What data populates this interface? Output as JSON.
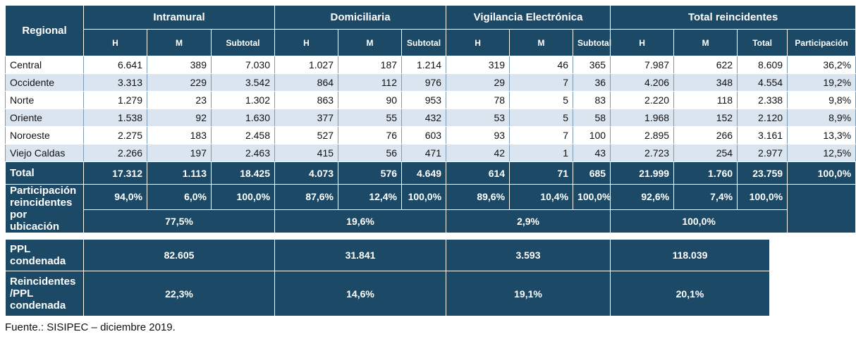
{
  "headers": {
    "regional": "Regional",
    "groups": [
      "Intramural",
      "Domiciliaria",
      "Vigilancia Electrónica",
      "Total reincidentes"
    ],
    "intramural_sub": [
      "H",
      "M",
      "Subtotal"
    ],
    "domiciliaria_sub": [
      "H",
      "M",
      "Subtotal"
    ],
    "vigilancia_sub": [
      "H",
      "M",
      "Subtotal"
    ],
    "total_sub": [
      "H",
      "M",
      "Total",
      "Participación"
    ]
  },
  "rows": [
    {
      "name": "Central",
      "values": [
        "6.641",
        "389",
        "7.030",
        "1.027",
        "187",
        "1.214",
        "319",
        "46",
        "365",
        "7.987",
        "622",
        "8.609",
        "36,2%"
      ]
    },
    {
      "name": "Occidente",
      "values": [
        "3.313",
        "229",
        "3.542",
        "864",
        "112",
        "976",
        "29",
        "7",
        "36",
        "4.206",
        "348",
        "4.554",
        "19,2%"
      ]
    },
    {
      "name": "Norte",
      "values": [
        "1.279",
        "23",
        "1.302",
        "863",
        "90",
        "953",
        "78",
        "5",
        "83",
        "2.220",
        "118",
        "2.338",
        "9,8%"
      ]
    },
    {
      "name": "Oriente",
      "values": [
        "1.538",
        "92",
        "1.630",
        "377",
        "55",
        "432",
        "53",
        "5",
        "58",
        "1.968",
        "152",
        "2.120",
        "8,9%"
      ]
    },
    {
      "name": "Noroeste",
      "values": [
        "2.275",
        "183",
        "2.458",
        "527",
        "76",
        "603",
        "93",
        "7",
        "100",
        "2.895",
        "266",
        "3.161",
        "13,3%"
      ]
    },
    {
      "name": "Viejo Caldas",
      "values": [
        "2.266",
        "197",
        "2.463",
        "415",
        "56",
        "471",
        "42",
        "1",
        "43",
        "2.723",
        "254",
        "2.977",
        "12,5%"
      ]
    }
  ],
  "total": {
    "name": "Total",
    "values": [
      "17.312",
      "1.113",
      "18.425",
      "4.073",
      "576",
      "4.649",
      "614",
      "71",
      "685",
      "21.999",
      "1.760",
      "23.759",
      "100,0%"
    ]
  },
  "participacion": {
    "name": "Participación reincidentes por ubicación",
    "values": [
      "94,0%",
      "6,0%",
      "100,0%",
      "87,6%",
      "12,4%",
      "100,0%",
      "89,6%",
      "10,4%",
      "100,0%",
      "92,6%",
      "7,4%",
      "100,0%"
    ],
    "ubicacion": [
      "77,5%",
      "19,6%",
      "2,9%",
      "100,0%"
    ]
  },
  "ppl": {
    "name": "PPL condenada",
    "values": [
      "82.605",
      "31.841",
      "3.593",
      "118.039"
    ]
  },
  "reincidentes_ppl": {
    "name": "Reincidentes /PPL condenada",
    "values": [
      "22,3%",
      "14,6%",
      "19,1%",
      "20,1%"
    ]
  },
  "source": "Fuente.: SISIPEC –  diciembre  2019.",
  "colors": {
    "header": "#1c4a66",
    "stripe": "#dbe5f0"
  }
}
